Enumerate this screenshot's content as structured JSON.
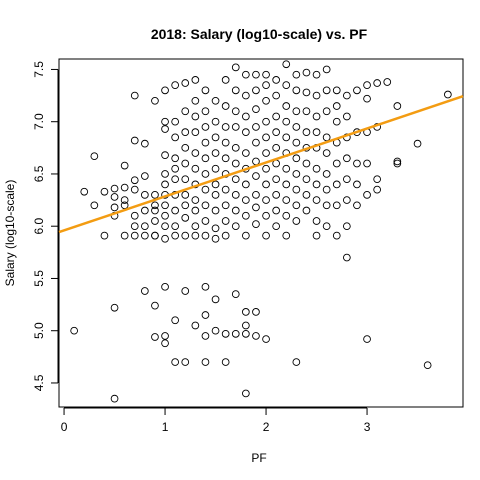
{
  "chart_data": {
    "type": "scatter",
    "title": "2018: Salary (log10-scale) vs. PF",
    "xlabel": "PF",
    "ylabel": "Salary (log10-scale)",
    "xlim": [
      -0.05,
      3.95
    ],
    "ylim": [
      4.27,
      7.6
    ],
    "x_ticks": [
      0,
      1,
      2,
      3
    ],
    "x_tick_labels": [
      "0",
      "1",
      "2",
      "3"
    ],
    "y_ticks": [
      4.5,
      5.0,
      5.5,
      6.0,
      6.5,
      7.0,
      7.5
    ],
    "y_tick_labels": [
      "4.5",
      "5.0",
      "5.5",
      "6.0",
      "6.5",
      "7.0",
      "7.5"
    ],
    "regression_line": {
      "color": "#f39c12",
      "intercept": 5.96,
      "slope": 0.325
    },
    "marker": {
      "shape": "open-circle",
      "color": "#000000"
    },
    "points": [
      [
        0.1,
        5.0
      ],
      [
        0.2,
        6.33
      ],
      [
        0.3,
        6.67
      ],
      [
        0.3,
        6.2
      ],
      [
        0.4,
        5.91
      ],
      [
        0.4,
        6.33
      ],
      [
        0.5,
        6.1
      ],
      [
        0.5,
        6.28
      ],
      [
        0.5,
        6.36
      ],
      [
        0.5,
        5.22
      ],
      [
        0.5,
        4.35
      ],
      [
        0.5,
        6.18
      ],
      [
        0.6,
        6.2
      ],
      [
        0.6,
        5.91
      ],
      [
        0.6,
        6.58
      ],
      [
        0.6,
        6.25
      ],
      [
        0.6,
        6.37
      ],
      [
        0.7,
        7.25
      ],
      [
        0.7,
        6.82
      ],
      [
        0.7,
        6.35
      ],
      [
        0.7,
        6.1
      ],
      [
        0.7,
        5.91
      ],
      [
        0.7,
        6.0
      ],
      [
        0.7,
        6.44
      ],
      [
        0.8,
        5.91
      ],
      [
        0.8,
        6.15
      ],
      [
        0.8,
        6.3
      ],
      [
        0.8,
        6.48
      ],
      [
        0.8,
        6.79
      ],
      [
        0.8,
        5.38
      ],
      [
        0.8,
        6.0
      ],
      [
        0.9,
        7.2
      ],
      [
        0.9,
        5.91
      ],
      [
        0.9,
        6.2
      ],
      [
        0.9,
        6.3
      ],
      [
        0.9,
        5.24
      ],
      [
        0.9,
        4.94
      ],
      [
        0.9,
        6.05
      ],
      [
        0.9,
        5.91
      ],
      [
        0.9,
        6.15
      ],
      [
        1.0,
        7.3
      ],
      [
        1.0,
        7.0
      ],
      [
        1.0,
        6.93
      ],
      [
        1.0,
        6.68
      ],
      [
        1.0,
        6.5
      ],
      [
        1.0,
        6.4
      ],
      [
        1.0,
        6.3
      ],
      [
        1.0,
        6.2
      ],
      [
        1.0,
        6.0
      ],
      [
        1.0,
        5.88
      ],
      [
        1.0,
        5.42
      ],
      [
        1.0,
        4.95
      ],
      [
        1.0,
        4.88
      ],
      [
        1.0,
        6.1
      ],
      [
        1.1,
        7.35
      ],
      [
        1.1,
        7.0
      ],
      [
        1.1,
        6.85
      ],
      [
        1.1,
        6.65
      ],
      [
        1.1,
        6.45
      ],
      [
        1.1,
        6.3
      ],
      [
        1.1,
        6.15
      ],
      [
        1.1,
        6.0
      ],
      [
        1.1,
        5.91
      ],
      [
        1.1,
        5.1
      ],
      [
        1.1,
        4.7
      ],
      [
        1.1,
        6.55
      ],
      [
        1.2,
        7.37
      ],
      [
        1.2,
        7.1
      ],
      [
        1.2,
        6.9
      ],
      [
        1.2,
        6.75
      ],
      [
        1.2,
        6.6
      ],
      [
        1.2,
        6.45
      ],
      [
        1.2,
        6.3
      ],
      [
        1.2,
        6.2
      ],
      [
        1.2,
        6.08
      ],
      [
        1.2,
        5.91
      ],
      [
        1.2,
        5.38
      ],
      [
        1.2,
        4.7
      ],
      [
        1.3,
        7.4
      ],
      [
        1.3,
        7.2
      ],
      [
        1.3,
        7.05
      ],
      [
        1.3,
        6.9
      ],
      [
        1.3,
        6.7
      ],
      [
        1.3,
        6.55
      ],
      [
        1.3,
        6.4
      ],
      [
        1.3,
        6.25
      ],
      [
        1.3,
        6.15
      ],
      [
        1.3,
        6.0
      ],
      [
        1.3,
        5.91
      ],
      [
        1.3,
        5.05
      ],
      [
        1.4,
        7.3
      ],
      [
        1.4,
        7.1
      ],
      [
        1.4,
        6.95
      ],
      [
        1.4,
        6.8
      ],
      [
        1.4,
        6.65
      ],
      [
        1.4,
        6.5
      ],
      [
        1.4,
        6.35
      ],
      [
        1.4,
        6.2
      ],
      [
        1.4,
        6.05
      ],
      [
        1.4,
        5.91
      ],
      [
        1.4,
        5.42
      ],
      [
        1.4,
        5.15
      ],
      [
        1.4,
        4.95
      ],
      [
        1.4,
        4.7
      ],
      [
        1.5,
        7.2
      ],
      [
        1.5,
        7.0
      ],
      [
        1.5,
        6.85
      ],
      [
        1.5,
        6.7
      ],
      [
        1.5,
        6.55
      ],
      [
        1.5,
        6.4
      ],
      [
        1.5,
        6.3
      ],
      [
        1.5,
        6.15
      ],
      [
        1.5,
        5.98
      ],
      [
        1.5,
        5.88
      ],
      [
        1.5,
        5.3
      ],
      [
        1.5,
        5.0
      ],
      [
        1.6,
        7.4
      ],
      [
        1.6,
        7.15
      ],
      [
        1.6,
        6.95
      ],
      [
        1.6,
        6.8
      ],
      [
        1.6,
        6.65
      ],
      [
        1.6,
        6.5
      ],
      [
        1.6,
        6.35
      ],
      [
        1.6,
        6.2
      ],
      [
        1.6,
        6.05
      ],
      [
        1.6,
        5.91
      ],
      [
        1.6,
        4.97
      ],
      [
        1.6,
        4.7
      ],
      [
        1.7,
        7.52
      ],
      [
        1.7,
        7.3
      ],
      [
        1.7,
        7.1
      ],
      [
        1.7,
        6.95
      ],
      [
        1.7,
        6.75
      ],
      [
        1.7,
        6.6
      ],
      [
        1.7,
        6.45
      ],
      [
        1.7,
        6.3
      ],
      [
        1.7,
        6.15
      ],
      [
        1.7,
        6.0
      ],
      [
        1.7,
        5.35
      ],
      [
        1.7,
        4.97
      ],
      [
        1.8,
        7.45
      ],
      [
        1.8,
        7.25
      ],
      [
        1.8,
        7.05
      ],
      [
        1.8,
        6.9
      ],
      [
        1.8,
        6.7
      ],
      [
        1.8,
        6.55
      ],
      [
        1.8,
        6.4
      ],
      [
        1.8,
        6.25
      ],
      [
        1.8,
        6.1
      ],
      [
        1.8,
        5.91
      ],
      [
        1.8,
        5.18
      ],
      [
        1.8,
        4.97
      ],
      [
        1.8,
        4.4
      ],
      [
        1.8,
        5.05
      ],
      [
        1.9,
        7.45
      ],
      [
        1.9,
        7.3
      ],
      [
        1.9,
        7.12
      ],
      [
        1.9,
        6.95
      ],
      [
        1.9,
        6.8
      ],
      [
        1.9,
        6.62
      ],
      [
        1.9,
        6.48
      ],
      [
        1.9,
        6.3
      ],
      [
        1.9,
        6.18
      ],
      [
        1.9,
        6.02
      ],
      [
        1.9,
        5.18
      ],
      [
        1.9,
        4.95
      ],
      [
        2.0,
        7.45
      ],
      [
        2.0,
        7.35
      ],
      [
        2.0,
        7.2
      ],
      [
        2.0,
        7.0
      ],
      [
        2.0,
        6.85
      ],
      [
        2.0,
        6.7
      ],
      [
        2.0,
        6.55
      ],
      [
        2.0,
        6.4
      ],
      [
        2.0,
        6.25
      ],
      [
        2.0,
        6.1
      ],
      [
        2.0,
        5.91
      ],
      [
        2.0,
        4.92
      ],
      [
        2.1,
        7.4
      ],
      [
        2.1,
        7.25
      ],
      [
        2.1,
        7.05
      ],
      [
        2.1,
        6.9
      ],
      [
        2.1,
        6.75
      ],
      [
        2.1,
        6.6
      ],
      [
        2.1,
        6.45
      ],
      [
        2.1,
        6.3
      ],
      [
        2.1,
        6.15
      ],
      [
        2.1,
        6.0
      ],
      [
        2.2,
        7.55
      ],
      [
        2.2,
        7.35
      ],
      [
        2.2,
        7.15
      ],
      [
        2.2,
        7.0
      ],
      [
        2.2,
        6.85
      ],
      [
        2.2,
        6.7
      ],
      [
        2.2,
        6.55
      ],
      [
        2.2,
        6.4
      ],
      [
        2.2,
        6.25
      ],
      [
        2.2,
        6.1
      ],
      [
        2.2,
        5.91
      ],
      [
        2.3,
        7.45
      ],
      [
        2.3,
        7.3
      ],
      [
        2.3,
        7.1
      ],
      [
        2.3,
        6.95
      ],
      [
        2.3,
        6.8
      ],
      [
        2.3,
        6.65
      ],
      [
        2.3,
        6.5
      ],
      [
        2.3,
        6.35
      ],
      [
        2.3,
        6.2
      ],
      [
        2.3,
        6.05
      ],
      [
        2.3,
        4.7
      ],
      [
        2.4,
        7.47
      ],
      [
        2.4,
        7.28
      ],
      [
        2.4,
        7.1
      ],
      [
        2.4,
        6.9
      ],
      [
        2.4,
        6.75
      ],
      [
        2.4,
        6.6
      ],
      [
        2.4,
        6.45
      ],
      [
        2.4,
        6.3
      ],
      [
        2.4,
        6.15
      ],
      [
        2.5,
        7.45
      ],
      [
        2.5,
        7.25
      ],
      [
        2.5,
        7.05
      ],
      [
        2.5,
        6.9
      ],
      [
        2.5,
        6.75
      ],
      [
        2.5,
        6.55
      ],
      [
        2.5,
        6.4
      ],
      [
        2.5,
        6.25
      ],
      [
        2.5,
        6.05
      ],
      [
        2.5,
        5.91
      ],
      [
        2.6,
        7.5
      ],
      [
        2.6,
        7.3
      ],
      [
        2.6,
        7.1
      ],
      [
        2.6,
        6.85
      ],
      [
        2.6,
        6.7
      ],
      [
        2.6,
        6.5
      ],
      [
        2.6,
        6.35
      ],
      [
        2.6,
        6.2
      ],
      [
        2.6,
        6.0
      ],
      [
        2.7,
        7.3
      ],
      [
        2.7,
        7.15
      ],
      [
        2.7,
        7.0
      ],
      [
        2.7,
        6.8
      ],
      [
        2.7,
        6.6
      ],
      [
        2.7,
        6.4
      ],
      [
        2.7,
        6.2
      ],
      [
        2.7,
        5.91
      ],
      [
        2.8,
        7.25
      ],
      [
        2.8,
        7.05
      ],
      [
        2.8,
        6.85
      ],
      [
        2.8,
        6.65
      ],
      [
        2.8,
        6.45
      ],
      [
        2.8,
        6.25
      ],
      [
        2.8,
        6.0
      ],
      [
        2.8,
        5.7
      ],
      [
        2.9,
        7.3
      ],
      [
        2.9,
        6.9
      ],
      [
        2.9,
        6.6
      ],
      [
        2.9,
        6.4
      ],
      [
        2.9,
        6.2
      ],
      [
        3.0,
        7.35
      ],
      [
        3.0,
        7.22
      ],
      [
        3.0,
        6.9
      ],
      [
        3.0,
        6.6
      ],
      [
        3.0,
        6.3
      ],
      [
        3.0,
        4.92
      ],
      [
        3.1,
        7.37
      ],
      [
        3.1,
        6.95
      ],
      [
        3.1,
        6.45
      ],
      [
        3.1,
        6.35
      ],
      [
        3.2,
        7.38
      ],
      [
        3.3,
        7.15
      ],
      [
        3.3,
        6.6
      ],
      [
        3.3,
        6.62
      ],
      [
        3.5,
        6.79
      ],
      [
        3.6,
        4.67
      ],
      [
        3.8,
        7.26
      ]
    ]
  }
}
